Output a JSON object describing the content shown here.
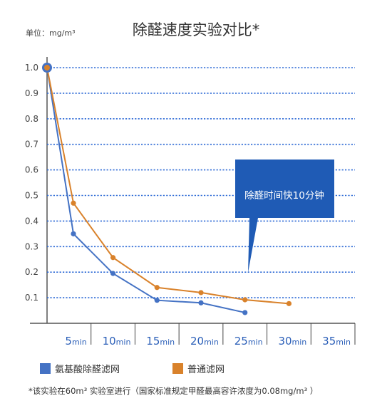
{
  "chart_data": {
    "type": "line",
    "title": "除醛速度实验对比*",
    "unit_label": "单位：mg/m³",
    "x_ticks": [
      {
        "num": "5",
        "unit": "min"
      },
      {
        "num": "10",
        "unit": "min"
      },
      {
        "num": "15",
        "unit": "min"
      },
      {
        "num": "20",
        "unit": "min"
      },
      {
        "num": "25",
        "unit": "min"
      },
      {
        "num": "30",
        "unit": "min"
      },
      {
        "num": "35",
        "unit": "min"
      }
    ],
    "y_ticks": [
      "1.0",
      "0.9",
      "0.8",
      "0.7",
      "0.6",
      "0.5",
      "0.4",
      "0.3",
      "0.2",
      "0.1"
    ],
    "xlim": [
      0,
      35
    ],
    "ylim": [
      0,
      1.0
    ],
    "grid": true,
    "series": [
      {
        "name": "氨基酸除醛滤网",
        "color": "#4472c4",
        "x": [
          0,
          3,
          7.5,
          12.5,
          17.5,
          22.5
        ],
        "y": [
          1.0,
          0.35,
          0.195,
          0.09,
          0.08,
          0.042
        ]
      },
      {
        "name": "普通滤网",
        "color": "#d9822b",
        "x": [
          0,
          3,
          7.5,
          12.5,
          17.5,
          22.5,
          27.5
        ],
        "y": [
          1.0,
          0.47,
          0.257,
          0.14,
          0.12,
          0.092,
          0.077
        ]
      }
    ],
    "annotation": "除醛时间快10分钟",
    "annotation_color": "#1f5bb5",
    "footnote": "*该实验在60m³ 实验室进行（国家标准规定甲醛最高容许浓度为0.08mg/m³ ）"
  }
}
